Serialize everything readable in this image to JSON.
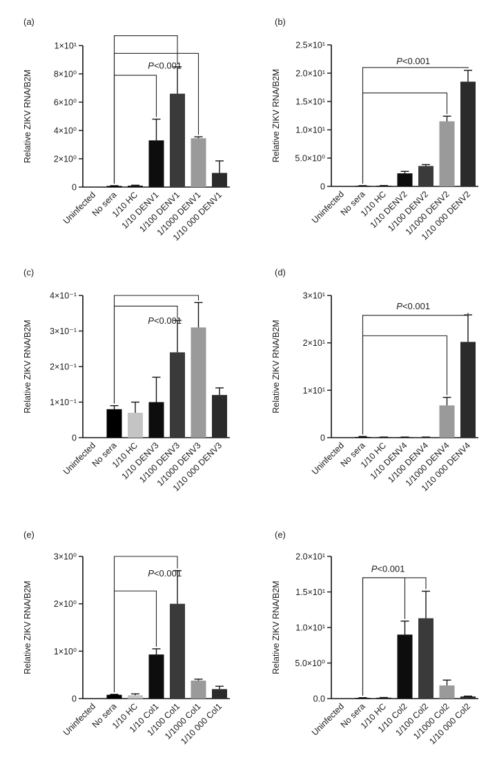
{
  "chart_data": [
    {
      "type": "bar",
      "panel_label": "(a)",
      "ylabel": "Relative ZIKV RNA/B2M",
      "ylim": [
        0,
        10
      ],
      "yticks": [
        {
          "v": 0,
          "label": "0"
        },
        {
          "v": 2,
          "label": "2×10⁰"
        },
        {
          "v": 4,
          "label": "4×10⁰"
        },
        {
          "v": 6,
          "label": "6×10⁰"
        },
        {
          "v": 8,
          "label": "8×10⁰"
        },
        {
          "v": 10,
          "label": "1×10¹"
        }
      ],
      "categories": [
        "Uninfected",
        "No sera",
        "1/10 HC",
        "1/10 DENV1",
        "1/100 DENV1",
        "1/1000 DENV1",
        "1/10 000 DENV1"
      ],
      "values": [
        0.0,
        0.08,
        0.1,
        3.3,
        6.6,
        3.45,
        1.0
      ],
      "errors": [
        0.0,
        0.02,
        0.03,
        1.5,
        1.9,
        0.1,
        0.85
      ],
      "bar_colors": [
        "#000000",
        "#000000",
        "#111111",
        "#0d0d0d",
        "#3a3a3a",
        "#9a9a9a",
        "#2b2b2b"
      ],
      "significance": {
        "label_prefix": "P",
        "label_suffix": "<0.001",
        "label_anchor": 2.6,
        "label_value": 8.6,
        "brackets": [
          {
            "from": 1,
            "to": 3,
            "height": 7.9
          },
          {
            "from": 1,
            "to": 4,
            "height": 10.7
          },
          {
            "from": 1,
            "to": 5,
            "height": 9.45
          }
        ]
      }
    },
    {
      "type": "bar",
      "panel_label": "(b)",
      "ylabel": "Relative ZIKV RNA/B2M",
      "ylim": [
        0,
        25
      ],
      "yticks": [
        {
          "v": 0,
          "label": "0"
        },
        {
          "v": 5,
          "label": "5.0×10⁰"
        },
        {
          "v": 10,
          "label": "1.0×10¹"
        },
        {
          "v": 15,
          "label": "1.5×10¹"
        },
        {
          "v": 20,
          "label": "2.0×10¹"
        },
        {
          "v": 25,
          "label": "2.5×10¹"
        }
      ],
      "categories": [
        "Uninfected",
        "No sera",
        "1/10 HC",
        "1/10 DENV2",
        "1/100 DENV2",
        "1/1000 DENV2",
        "1/10 000 DENV2"
      ],
      "values": [
        0.0,
        0.1,
        0.12,
        2.3,
        3.6,
        11.5,
        18.5
      ],
      "errors": [
        0.0,
        0.03,
        0.03,
        0.35,
        0.25,
        0.9,
        2.0
      ],
      "bar_colors": [
        "#000000",
        "#000000",
        "#111111",
        "#0d0d0d",
        "#3a3a3a",
        "#9a9a9a",
        "#2b2b2b"
      ],
      "significance": {
        "label_prefix": "P",
        "label_suffix": "<0.001",
        "label_anchor": 2.6,
        "label_value": 22.2,
        "brackets": [
          {
            "from": 1,
            "to": 5,
            "height": 16.5
          },
          {
            "from": 1,
            "to": 6,
            "height": 21.0
          }
        ]
      }
    },
    {
      "type": "bar",
      "panel_label": "(c)",
      "ylabel": "Relative ZIKV RNA/B2M",
      "ylim": [
        0,
        0.4
      ],
      "yticks": [
        {
          "v": 0,
          "label": "0"
        },
        {
          "v": 0.1,
          "label": "1×10⁻¹"
        },
        {
          "v": 0.2,
          "label": "2×10⁻¹"
        },
        {
          "v": 0.3,
          "label": "3×10⁻¹"
        },
        {
          "v": 0.4,
          "label": "4×10⁻¹"
        }
      ],
      "categories": [
        "Uninfected",
        "No sera",
        "1/10 HC",
        "1/10 DENV3",
        "1/100 DENV3",
        "1/1000 DENV3",
        "1/10 000 DENV3"
      ],
      "values": [
        0.0,
        0.08,
        0.07,
        0.1,
        0.24,
        0.31,
        0.12
      ],
      "errors": [
        0.0,
        0.01,
        0.03,
        0.07,
        0.09,
        0.07,
        0.02
      ],
      "bar_colors": [
        "#000000",
        "#000000",
        "#c4c4c4",
        "#0d0d0d",
        "#3a3a3a",
        "#9a9a9a",
        "#2b2b2b"
      ],
      "significance": {
        "label_prefix": "P",
        "label_suffix": "<0.001",
        "label_anchor": 2.6,
        "label_value": 0.33,
        "brackets": [
          {
            "from": 1,
            "to": 4,
            "height": 0.37
          },
          {
            "from": 1,
            "to": 5,
            "height": 0.4
          }
        ]
      }
    },
    {
      "type": "bar",
      "panel_label": "(d)",
      "ylabel": "Relative ZIKV RNA/B2M",
      "ylim": [
        0,
        30
      ],
      "yticks": [
        {
          "v": 0,
          "label": "0"
        },
        {
          "v": 10,
          "label": "1×10¹"
        },
        {
          "v": 20,
          "label": "2×10¹"
        },
        {
          "v": 30,
          "label": "3×10¹"
        }
      ],
      "categories": [
        "Uninfected",
        "No sera",
        "1/10 HC",
        "1/10 DENV4",
        "1/100 DENV4",
        "1/1000 DENV4",
        "1/10 000 DENV4"
      ],
      "values": [
        0.0,
        0.15,
        0.1,
        0.1,
        0.1,
        6.8,
        20.2
      ],
      "errors": [
        0.0,
        0.1,
        0.03,
        0.03,
        0.03,
        1.7,
        5.7
      ],
      "bar_colors": [
        "#000000",
        "#000000",
        "#111111",
        "#0d0d0d",
        "#3a3a3a",
        "#9a9a9a",
        "#2b2b2b"
      ],
      "significance": {
        "label_prefix": "P",
        "label_suffix": "<0.001",
        "label_anchor": 2.6,
        "label_value": 27.8,
        "brackets": [
          {
            "from": 1,
            "to": 5,
            "height": 21.5
          },
          {
            "from": 1,
            "to": 6,
            "height": 25.8
          }
        ]
      }
    },
    {
      "type": "bar",
      "panel_label": "(e)",
      "ylabel": "Relative ZIKV RNA/B2M",
      "ylim": [
        0,
        3
      ],
      "yticks": [
        {
          "v": 0,
          "label": "0"
        },
        {
          "v": 1,
          "label": "1×10⁰"
        },
        {
          "v": 2,
          "label": "2×10⁰"
        },
        {
          "v": 3,
          "label": "3×10⁰"
        }
      ],
      "categories": [
        "Uninfected",
        "No sera",
        "1/10 HC",
        "1/10 Col1",
        "1/100 Col1",
        "1/1000 Col1",
        "1/10 000 Col1"
      ],
      "values": [
        0.0,
        0.08,
        0.07,
        0.93,
        2.0,
        0.38,
        0.2
      ],
      "errors": [
        0.0,
        0.01,
        0.03,
        0.12,
        0.7,
        0.03,
        0.06
      ],
      "bar_colors": [
        "#000000",
        "#000000",
        "#c4c4c4",
        "#0d0d0d",
        "#3a3a3a",
        "#9a9a9a",
        "#2b2b2b"
      ],
      "significance": {
        "label_prefix": "P",
        "label_suffix": "<0.001",
        "label_anchor": 2.6,
        "label_value": 2.65,
        "brackets": [
          {
            "from": 1,
            "to": 3,
            "height": 2.27
          },
          {
            "from": 1,
            "to": 4,
            "height": 3.0
          }
        ]
      }
    },
    {
      "type": "bar",
      "panel_label": "(e)",
      "ylabel": "Relative ZIKV RNA/B2M",
      "ylim": [
        0,
        20
      ],
      "yticks": [
        {
          "v": 0,
          "label": "0.0"
        },
        {
          "v": 5,
          "label": "5.0×10⁰"
        },
        {
          "v": 10,
          "label": "1.0×10¹"
        },
        {
          "v": 15,
          "label": "1.5×10¹"
        },
        {
          "v": 20,
          "label": "2.0×10¹"
        }
      ],
      "categories": [
        "Uninfected",
        "No sera",
        "1/10 HC",
        "1/10 Col2",
        "1/100 Col2",
        "1/1000 Col2",
        "1/10 000 Col2"
      ],
      "values": [
        0.0,
        0.1,
        0.12,
        9.0,
        11.3,
        1.85,
        0.3
      ],
      "errors": [
        0.0,
        0.03,
        0.03,
        1.9,
        3.8,
        0.75,
        0.05
      ],
      "bar_colors": [
        "#000000",
        "#000000",
        "#111111",
        "#0d0d0d",
        "#3a3a3a",
        "#9a9a9a",
        "#2b2b2b"
      ],
      "significance": {
        "label_prefix": "P",
        "label_suffix": "<0.001",
        "label_anchor": 1.4,
        "label_value": 18.3,
        "brackets": [
          {
            "from": 1,
            "to": 3,
            "height": 17.0
          },
          {
            "from": 1,
            "to": 4,
            "height": 17.0
          }
        ]
      }
    }
  ]
}
